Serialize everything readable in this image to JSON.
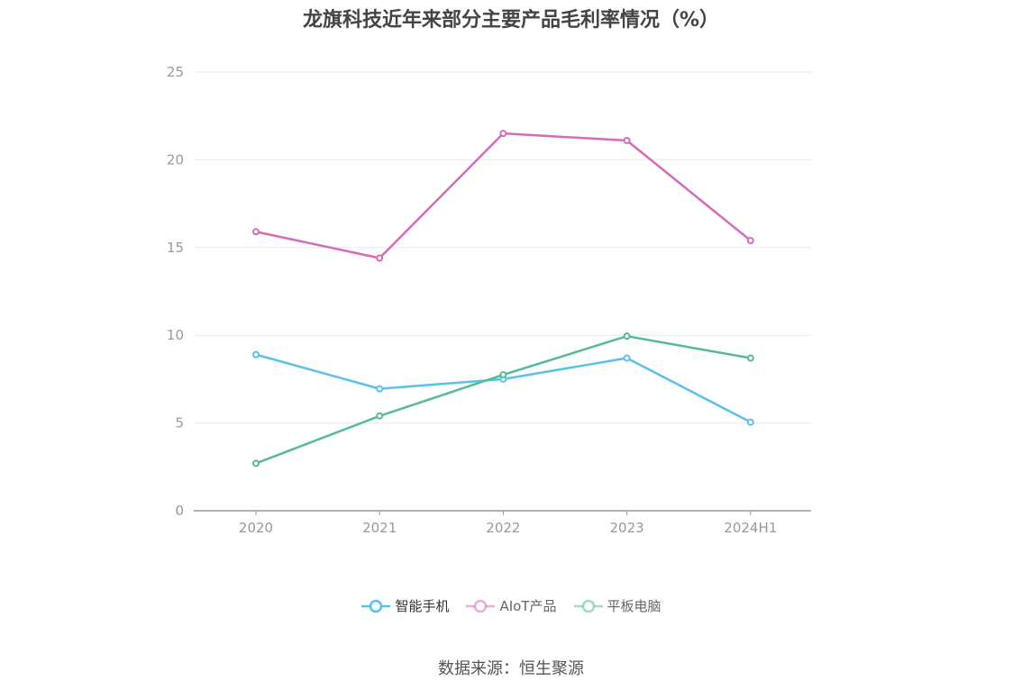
{
  "title": "龙旗科技近年来部分主要产品毛利率情况（%）",
  "source": "数据来源：恒生聚源",
  "chart_data": {
    "type": "line",
    "categories": [
      "2020",
      "2021",
      "2022",
      "2023",
      "2024H1"
    ],
    "series": [
      {
        "name": "智能手机",
        "color": "#5bc0eb",
        "values": [
          8.9,
          6.95,
          7.5,
          8.7,
          5.05
        ]
      },
      {
        "name": "AIoT产品",
        "color": "#d66bb8",
        "values": [
          15.9,
          14.4,
          21.5,
          21.1,
          15.4
        ]
      },
      {
        "name": "平板电脑",
        "color": "#55b99b",
        "values": [
          2.7,
          5.4,
          7.75,
          9.95,
          8.7
        ]
      }
    ],
    "yticks": [
      "0",
      "5",
      "10",
      "15",
      "20",
      "25"
    ],
    "ylim": [
      0,
      25
    ],
    "grid": true,
    "legend_position": "bottom"
  }
}
